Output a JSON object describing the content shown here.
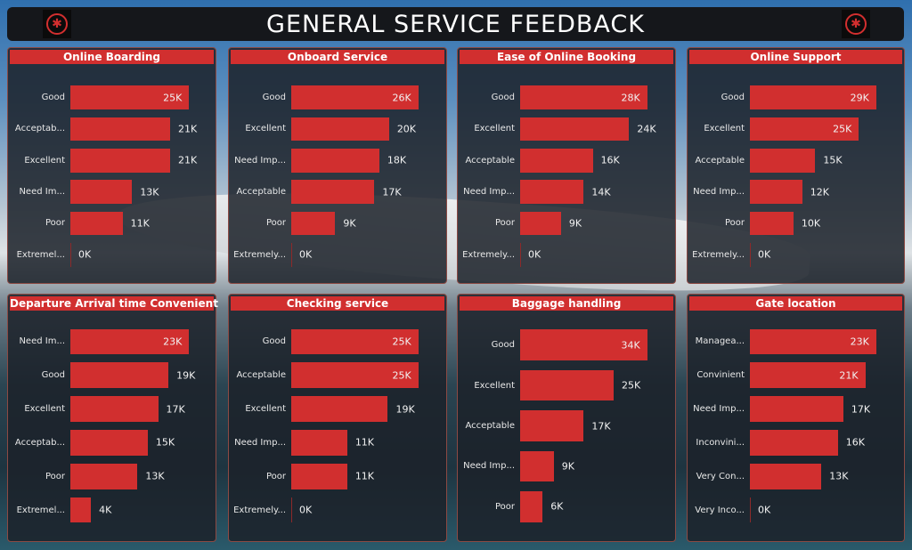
{
  "header": {
    "title": "GENERAL SERVICE FEEDBACK",
    "logo_icon": "maple-leaf-roundel-icon"
  },
  "colors": {
    "bar": "#d12f2f",
    "title_bar": "#d12f2f",
    "header_bg": "#15171b"
  },
  "chart_data": [
    {
      "type": "bar",
      "orientation": "horizontal",
      "title": "Online Boarding",
      "categories": [
        "Good",
        "Acceptab...",
        "Excellent",
        "Need Im...",
        "Poor",
        "Extremel..."
      ],
      "values": [
        25,
        21,
        21,
        13,
        11,
        0
      ],
      "labels": [
        "25K",
        "21K",
        "21K",
        "13K",
        "11K",
        "0K"
      ],
      "unit": "K"
    },
    {
      "type": "bar",
      "orientation": "horizontal",
      "title": "Onboard Service",
      "categories": [
        "Good",
        "Excellent",
        "Need Imp...",
        "Acceptable",
        "Poor",
        "Extremely..."
      ],
      "values": [
        26,
        20,
        18,
        17,
        9,
        0
      ],
      "labels": [
        "26K",
        "20K",
        "18K",
        "17K",
        "9K",
        "0K"
      ],
      "unit": "K"
    },
    {
      "type": "bar",
      "orientation": "horizontal",
      "title": "Ease of Online Booking",
      "categories": [
        "Good",
        "Excellent",
        "Acceptable",
        "Need Imp...",
        "Poor",
        "Extremely..."
      ],
      "values": [
        28,
        24,
        16,
        14,
        9,
        0
      ],
      "labels": [
        "28K",
        "24K",
        "16K",
        "14K",
        "9K",
        "0K"
      ],
      "unit": "K"
    },
    {
      "type": "bar",
      "orientation": "horizontal",
      "title": "Online Support",
      "categories": [
        "Good",
        "Excellent",
        "Acceptable",
        "Need Imp...",
        "Poor",
        "Extremely..."
      ],
      "values": [
        29,
        25,
        15,
        12,
        10,
        0
      ],
      "labels": [
        "29K",
        "25K",
        "15K",
        "12K",
        "10K",
        "0K"
      ],
      "unit": "K"
    },
    {
      "type": "bar",
      "orientation": "horizontal",
      "title": "Departure Arrival time Convenient",
      "categories": [
        "Need Im...",
        "Good",
        "Excellent",
        "Acceptab...",
        "Poor",
        "Extremel..."
      ],
      "values": [
        23,
        19,
        17,
        15,
        13,
        4
      ],
      "labels": [
        "23K",
        "19K",
        "17K",
        "15K",
        "13K",
        "4K"
      ],
      "unit": "K"
    },
    {
      "type": "bar",
      "orientation": "horizontal",
      "title": "Checking service",
      "categories": [
        "Good",
        "Acceptable",
        "Excellent",
        "Need Imp...",
        "Poor",
        "Extremely..."
      ],
      "values": [
        25,
        25,
        19,
        11,
        11,
        0
      ],
      "labels": [
        "25K",
        "25K",
        "19K",
        "11K",
        "11K",
        "0K"
      ],
      "unit": "K"
    },
    {
      "type": "bar",
      "orientation": "horizontal",
      "title": "Baggage handling",
      "categories": [
        "Good",
        "Excellent",
        "Acceptable",
        "Need Imp...",
        "Poor"
      ],
      "values": [
        34,
        25,
        17,
        9,
        6
      ],
      "labels": [
        "34K",
        "25K",
        "17K",
        "9K",
        "6K"
      ],
      "unit": "K"
    },
    {
      "type": "bar",
      "orientation": "horizontal",
      "title": "Gate location",
      "categories": [
        "Managea...",
        "Convinient",
        "Need Imp...",
        "Inconvini...",
        "Very Con...",
        "Very Inco..."
      ],
      "values": [
        23,
        21,
        17,
        16,
        13,
        0
      ],
      "labels": [
        "23K",
        "21K",
        "17K",
        "16K",
        "13K",
        "0K"
      ],
      "unit": "K"
    }
  ]
}
